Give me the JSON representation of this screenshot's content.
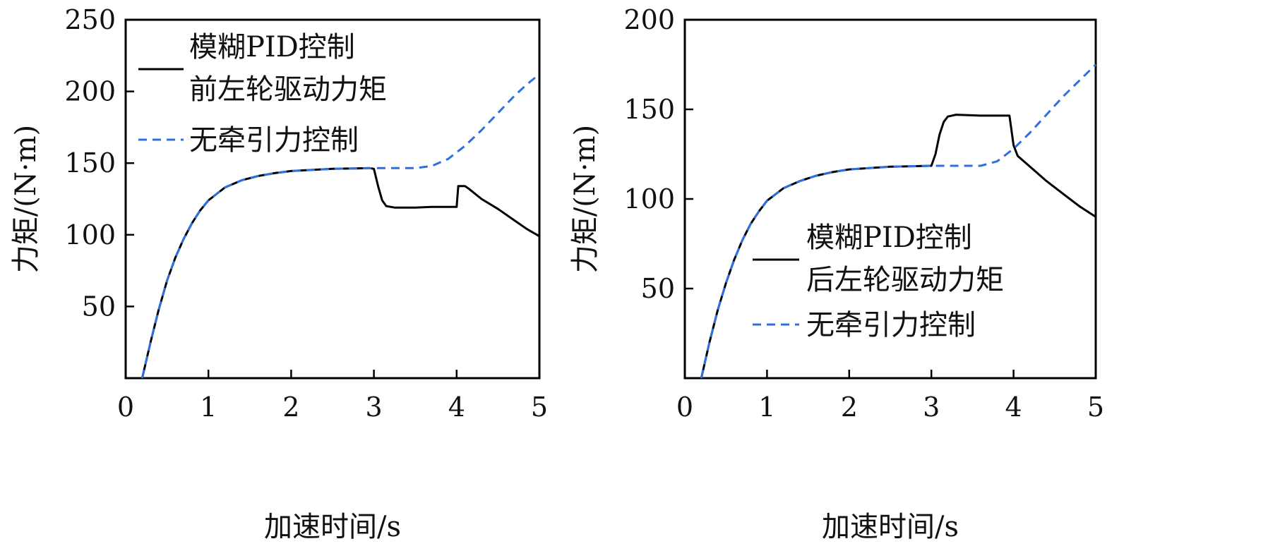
{
  "chart_data": [
    {
      "type": "line",
      "xlabel": "加速时间/s",
      "ylabel": "力矩/(N·m)",
      "xlim": [
        0,
        5
      ],
      "ylim": [
        0,
        250
      ],
      "x_ticks": [
        0,
        1,
        2,
        3,
        4,
        5
      ],
      "y_ticks": [
        50,
        100,
        150,
        200,
        250
      ],
      "grid": false,
      "legend_position": "top-left",
      "legend": {
        "title": "模糊PID控制",
        "title_line2": "前左轮驱动力矩",
        "dashed": "无牵引力控制"
      },
      "series": [
        {
          "name": "模糊PID控制 前左轮驱动力矩",
          "color": "#000000",
          "dash": "solid",
          "points": [
            [
              0.2,
              0
            ],
            [
              0.3,
              25
            ],
            [
              0.4,
              48
            ],
            [
              0.5,
              68
            ],
            [
              0.6,
              84
            ],
            [
              0.7,
              97
            ],
            [
              0.8,
              108
            ],
            [
              0.9,
              117
            ],
            [
              1.0,
              124
            ],
            [
              1.2,
              133
            ],
            [
              1.4,
              138
            ],
            [
              1.6,
              141
            ],
            [
              1.8,
              143
            ],
            [
              2.0,
              144.5
            ],
            [
              2.5,
              146
            ],
            [
              2.95,
              146.5
            ],
            [
              3.0,
              146
            ],
            [
              3.05,
              134
            ],
            [
              3.1,
              124
            ],
            [
              3.15,
              120
            ],
            [
              3.25,
              119
            ],
            [
              3.5,
              119
            ],
            [
              3.7,
              119.5
            ],
            [
              4.0,
              119.5
            ],
            [
              4.02,
              134
            ],
            [
              4.1,
              134
            ],
            [
              4.15,
              132
            ],
            [
              4.3,
              125
            ],
            [
              4.5,
              118
            ],
            [
              4.7,
              110
            ],
            [
              4.85,
              104
            ],
            [
              5.0,
              99
            ]
          ]
        },
        {
          "name": "无牵引力控制",
          "color": "#2f6fe0",
          "dash": "dashed",
          "points": [
            [
              0.2,
              0
            ],
            [
              0.3,
              25
            ],
            [
              0.4,
              48
            ],
            [
              0.5,
              68
            ],
            [
              0.6,
              84
            ],
            [
              0.7,
              97
            ],
            [
              0.8,
              108
            ],
            [
              0.9,
              117
            ],
            [
              1.0,
              124
            ],
            [
              1.2,
              133
            ],
            [
              1.4,
              138
            ],
            [
              1.6,
              141
            ],
            [
              1.8,
              143
            ],
            [
              2.0,
              144.5
            ],
            [
              2.5,
              146
            ],
            [
              3.0,
              146.5
            ],
            [
              3.5,
              146.5
            ],
            [
              3.7,
              148
            ],
            [
              3.9,
              153
            ],
            [
              4.1,
              162
            ],
            [
              4.3,
              173
            ],
            [
              4.5,
              185
            ],
            [
              4.7,
              197
            ],
            [
              4.85,
              205
            ],
            [
              5.0,
              212
            ]
          ]
        }
      ]
    },
    {
      "type": "line",
      "xlabel": "加速时间/s",
      "ylabel": "力矩/(N·m)",
      "xlim": [
        0,
        5
      ],
      "ylim": [
        0,
        200
      ],
      "x_ticks": [
        0,
        1,
        2,
        3,
        4,
        5
      ],
      "y_ticks": [
        50,
        100,
        150,
        200
      ],
      "grid": false,
      "legend_position": "bottom-right",
      "legend": {
        "title": "模糊PID控制",
        "title_line2": "后左轮驱动力矩",
        "dashed": "无牵引力控制"
      },
      "series": [
        {
          "name": "模糊PID控制 后左轮驱动力矩",
          "color": "#000000",
          "dash": "solid",
          "points": [
            [
              0.2,
              0
            ],
            [
              0.3,
              20
            ],
            [
              0.4,
              38
            ],
            [
              0.5,
              53
            ],
            [
              0.6,
              66
            ],
            [
              0.7,
              77
            ],
            [
              0.8,
              86
            ],
            [
              0.9,
              93
            ],
            [
              1.0,
              99
            ],
            [
              1.2,
              106
            ],
            [
              1.4,
              110
            ],
            [
              1.6,
              113
            ],
            [
              1.8,
              115
            ],
            [
              2.0,
              116.5
            ],
            [
              2.5,
              118
            ],
            [
              3.0,
              118.5
            ],
            [
              3.05,
              125
            ],
            [
              3.1,
              136
            ],
            [
              3.15,
              143
            ],
            [
              3.2,
              146
            ],
            [
              3.3,
              147
            ],
            [
              3.6,
              146.5
            ],
            [
              3.95,
              146.5
            ],
            [
              4.0,
              130
            ],
            [
              4.05,
              124
            ],
            [
              4.2,
              118
            ],
            [
              4.4,
              110
            ],
            [
              4.6,
              103
            ],
            [
              4.8,
              96
            ],
            [
              5.0,
              90
            ]
          ]
        },
        {
          "name": "无牵引力控制",
          "color": "#2f6fe0",
          "dash": "dashed",
          "points": [
            [
              0.2,
              0
            ],
            [
              0.3,
              20
            ],
            [
              0.4,
              38
            ],
            [
              0.5,
              53
            ],
            [
              0.6,
              66
            ],
            [
              0.7,
              77
            ],
            [
              0.8,
              86
            ],
            [
              0.9,
              93
            ],
            [
              1.0,
              99
            ],
            [
              1.2,
              106
            ],
            [
              1.4,
              110
            ],
            [
              1.6,
              113
            ],
            [
              1.8,
              115
            ],
            [
              2.0,
              116.5
            ],
            [
              2.5,
              118
            ],
            [
              3.0,
              118.5
            ],
            [
              3.6,
              118.5
            ],
            [
              3.8,
              121
            ],
            [
              4.0,
              128
            ],
            [
              4.2,
              137
            ],
            [
              4.4,
              147
            ],
            [
              4.6,
              157
            ],
            [
              4.8,
              166
            ],
            [
              5.0,
              175
            ]
          ]
        }
      ]
    }
  ]
}
